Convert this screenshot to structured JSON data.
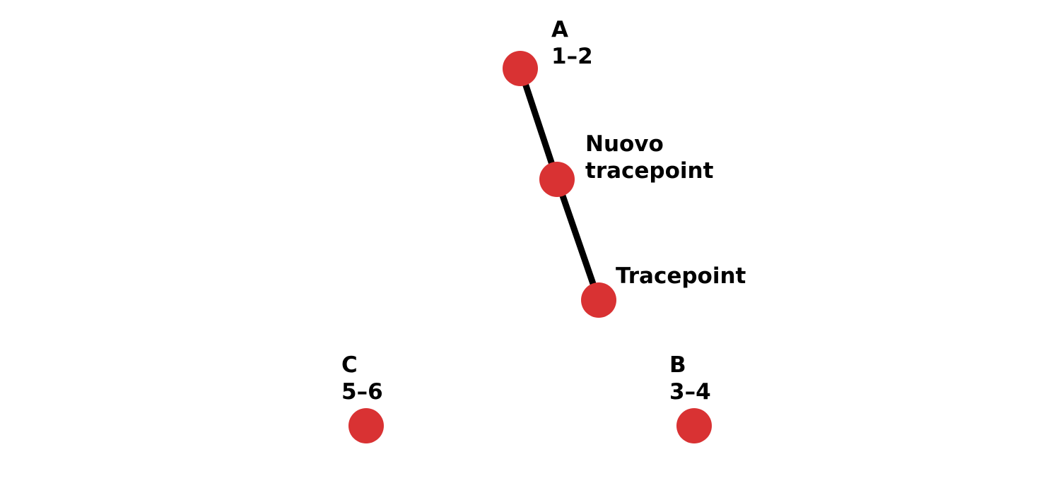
{
  "colors": {
    "background": "#ffffff",
    "node_fill": "#d93233",
    "edge_stroke": "#000000",
    "label_text": "#000000"
  },
  "nodes": [
    {
      "id": "a",
      "label_lines": [
        "A",
        "1–2"
      ]
    },
    {
      "id": "nuovo-tracepoint",
      "label_lines": [
        "Nuovo",
        "tracepoint"
      ]
    },
    {
      "id": "tracepoint",
      "label_lines": [
        "Tracepoint"
      ]
    },
    {
      "id": "c",
      "label_lines": [
        "C",
        "5–6"
      ]
    },
    {
      "id": "b",
      "label_lines": [
        "B",
        "3–4"
      ]
    }
  ],
  "edges": [
    {
      "from": "a",
      "to": "nuovo-tracepoint"
    },
    {
      "from": "nuovo-tracepoint",
      "to": "tracepoint"
    }
  ]
}
